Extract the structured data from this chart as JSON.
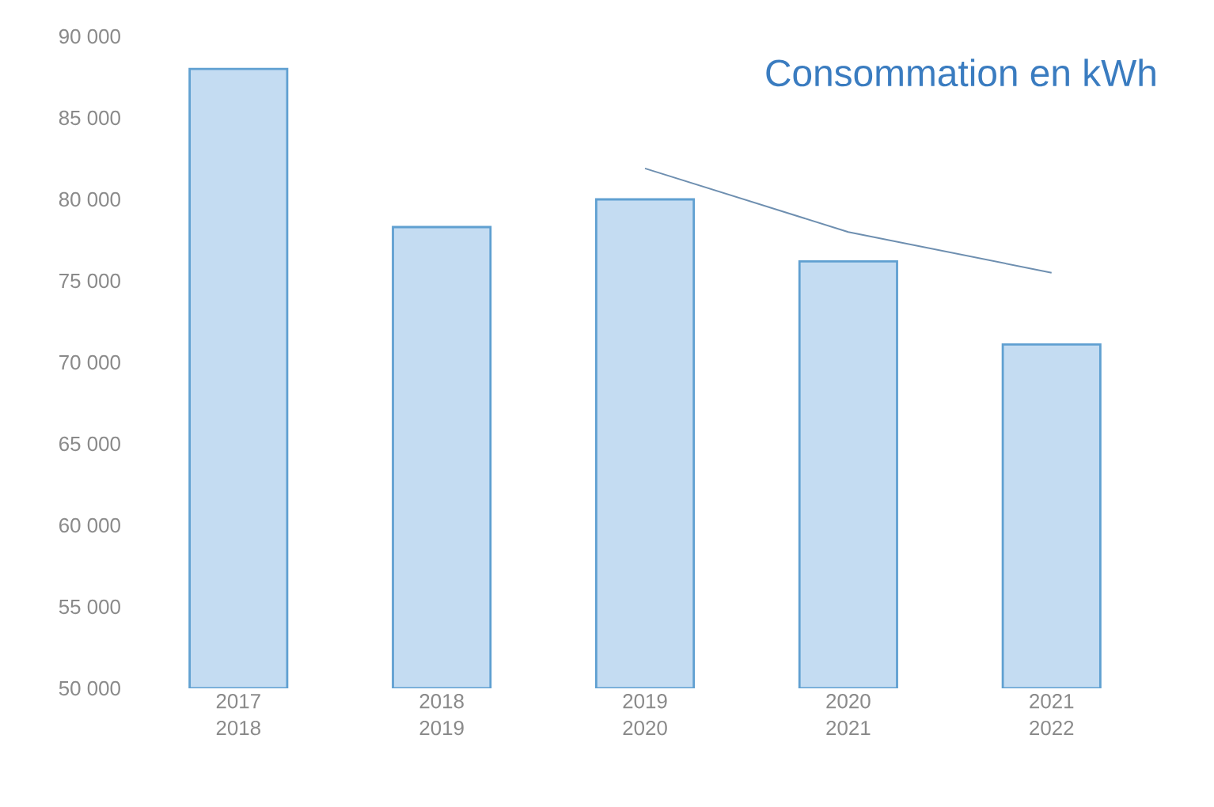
{
  "chart_data": {
    "type": "bar",
    "title": "Consommation en kWh",
    "categories": [
      "2017 2018",
      "2018 2019",
      "2019 2020",
      "2020 2021",
      "2021 2022"
    ],
    "series": [
      {
        "color": "#c4dcf2",
        "values": [
          88000,
          78300,
          80000,
          76200,
          71100
        ]
      },
      {
        "type": "line",
        "color": "#6e8fb0",
        "values": [
          null,
          null,
          81900,
          78000,
          75500
        ]
      }
    ],
    "ylim": [
      50000,
      90000
    ],
    "yticks": [
      {
        "value": 50000,
        "label": "50 000"
      },
      {
        "value": 55000,
        "label": "55 000"
      },
      {
        "value": 60000,
        "label": "60 000"
      },
      {
        "value": 65000,
        "label": "65 000"
      },
      {
        "value": 70000,
        "label": "70 000"
      },
      {
        "value": 75000,
        "label": "75 000"
      },
      {
        "value": 80000,
        "label": "80 000"
      },
      {
        "value": 85000,
        "label": "85 000"
      },
      {
        "value": 90000,
        "label": "90 000"
      }
    ],
    "grid": false
  }
}
